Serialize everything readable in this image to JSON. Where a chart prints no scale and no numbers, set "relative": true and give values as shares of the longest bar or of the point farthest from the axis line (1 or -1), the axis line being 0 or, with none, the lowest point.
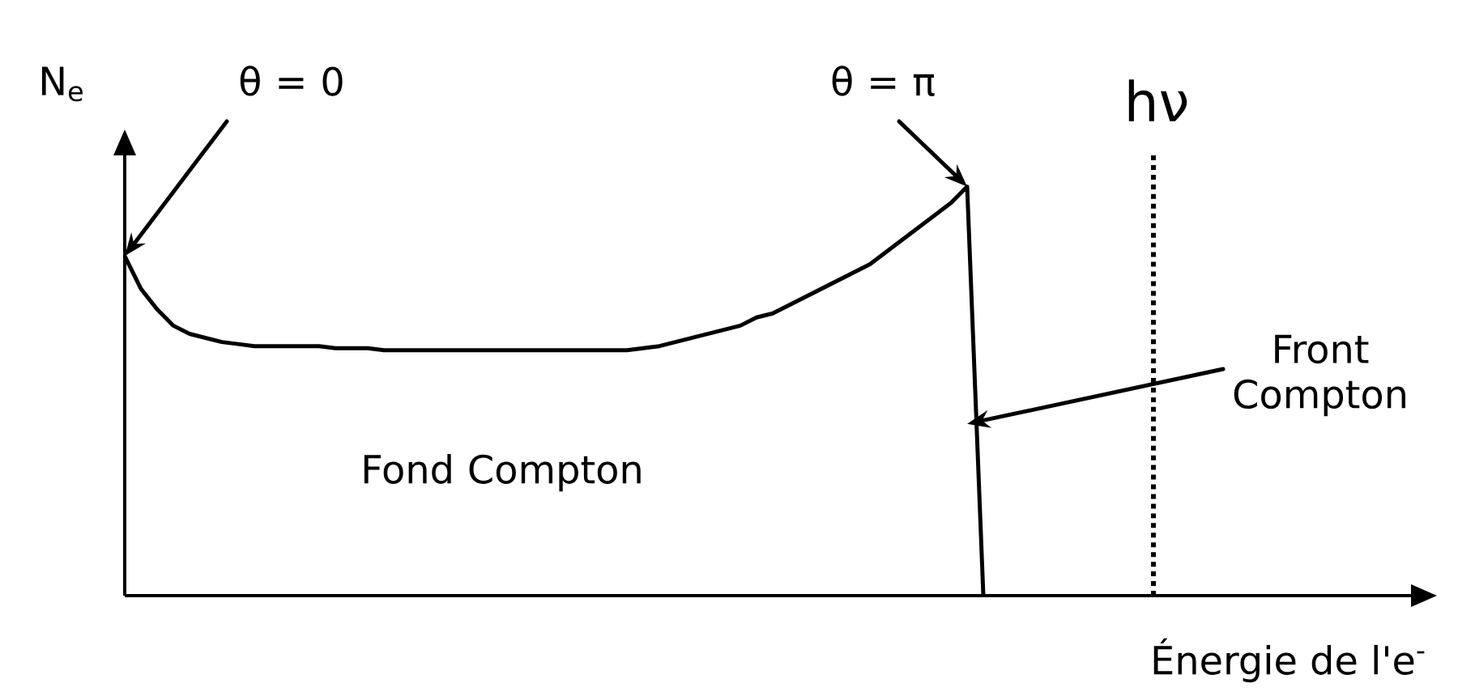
{
  "chart_data": {
    "type": "line",
    "relative": true,
    "xlabel": "Énergie de l'e$^{-}$",
    "ylabel": "N$_{e}$",
    "categories": [
      null,
      null,
      null,
      null,
      null,
      null,
      null,
      null,
      null,
      null,
      null,
      null,
      null,
      null,
      null,
      null,
      null,
      null,
      null,
      null,
      null,
      null,
      null,
      null,
      null,
      null,
      null,
      null,
      null,
      null,
      null,
      null,
      null,
      null,
      null,
      null,
      null,
      null,
      null,
      null,
      null,
      null,
      null,
      null,
      null,
      null,
      null,
      null,
      null,
      null,
      null,
      null,
      null,
      null,
      null,
      null,
      null,
      null,
      null,
      null,
      null,
      null,
      null,
      null,
      null,
      null,
      null,
      null,
      null,
      null,
      null,
      null,
      null,
      null,
      null,
      null,
      null,
      null,
      null,
      null,
      null
    ],
    "values": [
      0.83,
      0.75,
      0.7,
      0.66,
      0.64,
      0.63,
      0.62,
      0.615,
      0.61,
      0.61,
      0.61,
      0.61,
      0.61,
      0.605,
      0.605,
      0.605,
      0.6,
      0.6,
      0.6,
      0.6,
      0.6,
      0.6,
      0.6,
      0.6,
      0.6,
      0.6,
      0.6,
      0.6,
      0.6,
      0.6,
      0.6,
      0.6,
      0.605,
      0.61,
      0.62,
      0.63,
      0.64,
      0.65,
      0.66,
      0.68,
      0.69,
      0.71,
      0.73,
      0.75,
      0.77,
      0.79,
      0.81,
      0.84,
      0.87,
      0.9,
      0.93,
      0.96,
      1,
      0,
      null,
      null,
      null,
      null,
      null,
      null,
      null,
      null,
      null,
      null,
      null,
      null,
      null,
      null,
      null,
      null,
      null,
      null,
      null,
      null,
      null,
      null,
      null,
      null,
      null,
      null,
      null
    ],
    "color": "#000000",
    "line_style": "solid",
    "marker": "none",
    "annotations": [
      "θ = 0",
      "θ = π",
      "Front Compton",
      "Fond Compton",
      "hν"
    ]
  }
}
